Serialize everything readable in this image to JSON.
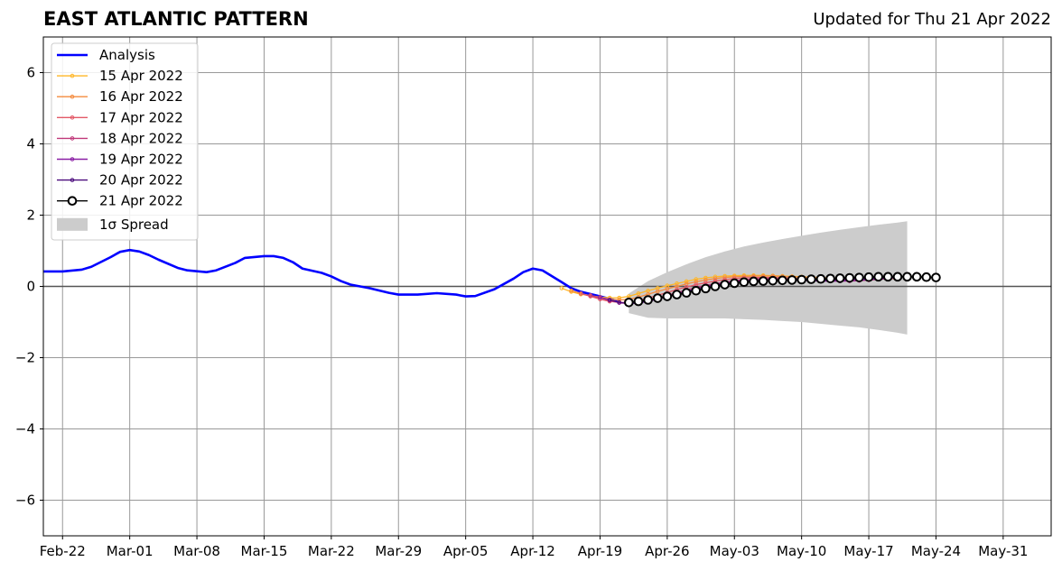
{
  "header": {
    "title": "EAST ATLANTIC PATTERN",
    "updated": "Updated for Thu 21 Apr 2022"
  },
  "colors": {
    "analysis": "#0000ff",
    "spread": "#cccccc",
    "grid": "#999999",
    "zero_line": "#555555"
  },
  "chart_data": {
    "type": "line",
    "x_unit": "date (2022)",
    "xlim": [
      "2022-02-20",
      "2022-06-05"
    ],
    "ylim": [
      -7,
      7
    ],
    "yticks": [
      -6,
      -4,
      -2,
      0,
      2,
      4,
      6
    ],
    "ytick_labels": [
      "−6",
      "−4",
      "−2",
      "0",
      "2",
      "4",
      "6"
    ],
    "xticks": [
      "2022-02-22",
      "2022-03-01",
      "2022-03-08",
      "2022-03-15",
      "2022-03-22",
      "2022-03-29",
      "2022-04-05",
      "2022-04-12",
      "2022-04-19",
      "2022-04-26",
      "2022-05-03",
      "2022-05-10",
      "2022-05-17",
      "2022-05-24",
      "2022-05-31"
    ],
    "xtick_labels": [
      "Feb-22",
      "Mar-01",
      "Mar-08",
      "Mar-15",
      "Mar-22",
      "Mar-29",
      "Apr-05",
      "Apr-12",
      "Apr-19",
      "Apr-26",
      "May-03",
      "May-10",
      "May-17",
      "May-24",
      "May-31"
    ],
    "grid": true,
    "legend_position": "top-left",
    "analysis": {
      "name": "Analysis",
      "color": "#0000ff",
      "x": [
        "2022-02-20",
        "2022-02-22",
        "2022-02-24",
        "2022-02-25",
        "2022-02-27",
        "2022-02-28",
        "2022-03-01",
        "2022-03-02",
        "2022-03-03",
        "2022-03-04",
        "2022-03-06",
        "2022-03-07",
        "2022-03-09",
        "2022-03-10",
        "2022-03-12",
        "2022-03-13",
        "2022-03-15",
        "2022-03-16",
        "2022-03-17",
        "2022-03-18",
        "2022-03-19",
        "2022-03-21",
        "2022-03-22",
        "2022-03-23",
        "2022-03-24",
        "2022-03-25",
        "2022-03-26",
        "2022-03-28",
        "2022-03-29",
        "2022-03-31",
        "2022-04-02",
        "2022-04-04",
        "2022-04-05",
        "2022-04-06",
        "2022-04-08",
        "2022-04-10",
        "2022-04-11",
        "2022-04-12",
        "2022-04-13",
        "2022-04-15",
        "2022-04-16",
        "2022-04-17",
        "2022-04-19",
        "2022-04-21"
      ],
      "y": [
        0.42,
        0.42,
        0.47,
        0.55,
        0.82,
        0.97,
        1.02,
        0.98,
        0.88,
        0.75,
        0.52,
        0.45,
        0.4,
        0.45,
        0.66,
        0.8,
        0.85,
        0.85,
        0.8,
        0.68,
        0.5,
        0.38,
        0.28,
        0.15,
        0.05,
        0.0,
        -0.05,
        -0.18,
        -0.23,
        -0.23,
        -0.19,
        -0.23,
        -0.28,
        -0.27,
        -0.08,
        0.22,
        0.4,
        0.5,
        0.45,
        0.12,
        -0.05,
        -0.15,
        -0.28,
        -0.42
      ]
    },
    "spread": {
      "name": "1σ Spread",
      "x": [
        "2022-04-22",
        "2022-04-24",
        "2022-04-26",
        "2022-04-28",
        "2022-04-30",
        "2022-05-02",
        "2022-05-04",
        "2022-05-06",
        "2022-05-08",
        "2022-05-10",
        "2022-05-12",
        "2022-05-14",
        "2022-05-16",
        "2022-05-18",
        "2022-05-20",
        "2022-05-21"
      ],
      "upper": [
        -0.2,
        0.15,
        0.4,
        0.62,
        0.82,
        0.98,
        1.12,
        1.23,
        1.33,
        1.42,
        1.51,
        1.59,
        1.66,
        1.73,
        1.79,
        1.83
      ],
      "lower": [
        -0.75,
        -0.88,
        -0.9,
        -0.9,
        -0.9,
        -0.9,
        -0.92,
        -0.94,
        -0.97,
        -1.0,
        -1.05,
        -1.1,
        -1.15,
        -1.22,
        -1.3,
        -1.35
      ]
    },
    "forecasts": [
      {
        "name": "15 Apr 2022",
        "color": "#ffb627",
        "start": "2022-04-15",
        "y": [
          -0.05,
          -0.15,
          -0.22,
          -0.26,
          -0.3,
          -0.32,
          -0.32,
          -0.28,
          -0.2,
          -0.12,
          -0.05,
          0.02,
          0.08,
          0.14,
          0.2,
          0.24,
          0.27,
          0.29,
          0.3,
          0.31,
          0.31,
          0.31,
          0.3,
          0.29,
          0.28,
          0.27,
          0.26,
          0.25,
          0.24,
          0.23,
          0.22,
          0.22,
          0.22,
          0.22,
          0.22,
          0.22
        ]
      },
      {
        "name": "16 Apr 2022",
        "color": "#f48b3e",
        "start": "2022-04-16",
        "y": [
          -0.12,
          -0.2,
          -0.27,
          -0.32,
          -0.36,
          -0.38,
          -0.36,
          -0.3,
          -0.22,
          -0.14,
          -0.07,
          0.0,
          0.07,
          0.13,
          0.18,
          0.22,
          0.25,
          0.27,
          0.28,
          0.29,
          0.29,
          0.29,
          0.28,
          0.27,
          0.26,
          0.25,
          0.24,
          0.23,
          0.22,
          0.22,
          0.22,
          0.22,
          0.22,
          0.22,
          0.22
        ]
      },
      {
        "name": "17 Apr 2022",
        "color": "#e35866",
        "start": "2022-04-17",
        "y": [
          -0.2,
          -0.28,
          -0.36,
          -0.42,
          -0.45,
          -0.45,
          -0.4,
          -0.33,
          -0.25,
          -0.17,
          -0.09,
          -0.02,
          0.05,
          0.1,
          0.15,
          0.19,
          0.22,
          0.24,
          0.25,
          0.25,
          0.25,
          0.24,
          0.23,
          0.21,
          0.2,
          0.18,
          0.17,
          0.17,
          0.17,
          0.17,
          0.18,
          0.2,
          0.22,
          0.24
        ]
      },
      {
        "name": "18 Apr 2022",
        "color": "#c0397a",
        "start": "2022-04-18",
        "y": [
          -0.25,
          -0.32,
          -0.4,
          -0.46,
          -0.48,
          -0.46,
          -0.4,
          -0.33,
          -0.25,
          -0.17,
          -0.1,
          -0.03,
          0.03,
          0.08,
          0.12,
          0.16,
          0.19,
          0.21,
          0.22,
          0.22,
          0.21,
          0.2,
          0.19,
          0.17,
          0.16,
          0.15,
          0.15,
          0.15,
          0.16,
          0.18,
          0.2,
          0.22,
          0.24
        ]
      },
      {
        "name": "19 Apr 2022",
        "color": "#8a1fa5",
        "start": "2022-04-19",
        "y": [
          -0.3,
          -0.38,
          -0.45,
          -0.48,
          -0.47,
          -0.42,
          -0.36,
          -0.29,
          -0.21,
          -0.14,
          -0.07,
          -0.01,
          0.05,
          0.09,
          0.13,
          0.16,
          0.18,
          0.19,
          0.19,
          0.19,
          0.18,
          0.17,
          0.16,
          0.15,
          0.15,
          0.15,
          0.16,
          0.17,
          0.19,
          0.21,
          0.23,
          0.25
        ]
      },
      {
        "name": "20 Apr 2022",
        "color": "#4b0b7c",
        "start": "2022-04-20",
        "y": [
          -0.38,
          -0.45,
          -0.48,
          -0.46,
          -0.41,
          -0.35,
          -0.28,
          -0.21,
          -0.14,
          -0.07,
          -0.01,
          0.04,
          0.08,
          0.12,
          0.14,
          0.16,
          0.17,
          0.17,
          0.17,
          0.17,
          0.17,
          0.17,
          0.17,
          0.18,
          0.19,
          0.2,
          0.21,
          0.22,
          0.23,
          0.24,
          0.25
        ]
      },
      {
        "name": "21 Apr 2022",
        "color": "#000000",
        "start": "2022-04-22",
        "open_markers": true,
        "y": [
          -0.45,
          -0.42,
          -0.38,
          -0.33,
          -0.28,
          -0.23,
          -0.18,
          -0.12,
          -0.06,
          0.0,
          0.05,
          0.09,
          0.12,
          0.14,
          0.15,
          0.16,
          0.17,
          0.18,
          0.19,
          0.2,
          0.21,
          0.22,
          0.23,
          0.24,
          0.25,
          0.26,
          0.27,
          0.27,
          0.27,
          0.27,
          0.27,
          0.26,
          0.25
        ]
      }
    ]
  }
}
